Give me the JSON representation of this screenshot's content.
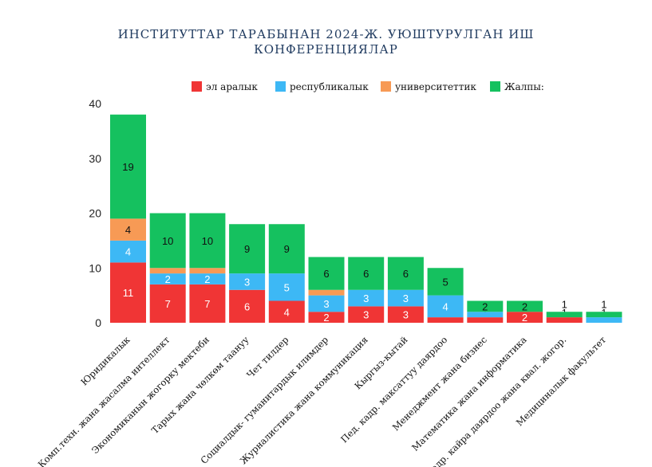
{
  "chart_data": {
    "type": "bar",
    "stacked": true,
    "title_line1": "ИНСТИТУТТАР ТАРАБЫНАН 2024-Ж. УЮШТУРУЛГАН ИШ",
    "title_line2": "КОНФЕРЕНЦИЯЛАР",
    "xlabel": "",
    "ylabel": "",
    "ylim": [
      0,
      40
    ],
    "yticks": [
      0,
      10,
      20,
      30,
      40
    ],
    "grid": false,
    "legend_position": "top",
    "categories": [
      "Юридикалык",
      "Комп.техн. жана жасалма интеллект",
      "Экономиканын жогорку мектеби",
      "Тарых жана чөлкөм таануу",
      "Чет тилдер",
      "Социалдык- гуманитардык илимдер",
      "Журналистика жана коммуникация",
      "Кыргыз-кытай",
      "Пед. кадр. максаттуу даярдоо",
      "Менеджмент жана бизнес",
      "Математика жана информатика",
      "Кадр. кайра даярдоо жана квал. жогор.",
      "Медициналык факультет"
    ],
    "series": [
      {
        "name": "эл аралык",
        "color": "#f03535",
        "label_color": "#ffffff",
        "values": [
          11,
          7,
          7,
          6,
          4,
          2,
          3,
          3,
          1,
          1,
          2,
          1,
          0
        ]
      },
      {
        "name": "республикалык",
        "color": "#3db8f5",
        "label_color": "#ffffff",
        "values": [
          4,
          2,
          2,
          3,
          5,
          3,
          3,
          3,
          4,
          1,
          0,
          0,
          1
        ]
      },
      {
        "name": "университеттик",
        "color": "#f79a55",
        "label_color": "#111111",
        "values": [
          4,
          1,
          1,
          0,
          0,
          1,
          0,
          0,
          0,
          0,
          0,
          0,
          0
        ]
      },
      {
        "name": "Жалпы:",
        "color": "#15c15f",
        "label_color": "#111111",
        "values": [
          19,
          10,
          10,
          9,
          9,
          6,
          6,
          6,
          5,
          2,
          2,
          1,
          1
        ]
      }
    ]
  }
}
